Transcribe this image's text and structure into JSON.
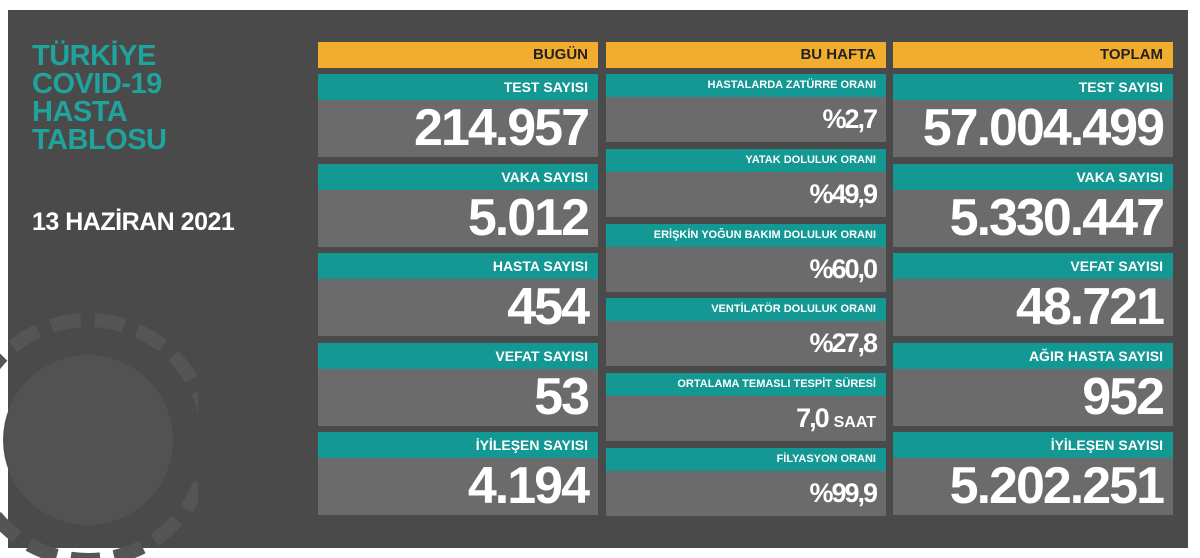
{
  "title_lines": [
    "TÜRKİYE",
    "COVID-19",
    "HASTA",
    "TABLOSU"
  ],
  "date": "13 HAZİRAN 2021",
  "columns": [
    {
      "header": "BUGÜN",
      "items": [
        {
          "label": "TEST SAYISI",
          "value": "214.957"
        },
        {
          "label": "VAKA SAYISI",
          "value": "5.012"
        },
        {
          "label": "HASTA SAYISI",
          "value": "454"
        },
        {
          "label": "VEFAT SAYISI",
          "value": "53"
        },
        {
          "label": "İYİLEŞEN SAYISI",
          "value": "4.194"
        }
      ]
    },
    {
      "header": "BU HAFTA",
      "items": [
        {
          "label": "HASTALARDA ZATÜRRE ORANI",
          "value": "%2,7"
        },
        {
          "label": "YATAK DOLULUK ORANI",
          "value": "%49,9"
        },
        {
          "label": "ERİŞKİN YOĞUN BAKIM DOLULUK ORANI",
          "value": "%60,0"
        },
        {
          "label": "VENTİLATÖR DOLULUK ORANI",
          "value": "%27,8"
        },
        {
          "label": "ORTALAMA TEMASLI TESPİT SÜRESİ",
          "value": "7,0",
          "unit": "SAAT"
        },
        {
          "label": "FİLYASYON ORANI",
          "value": "%99,9"
        }
      ]
    },
    {
      "header": "TOPLAM",
      "items": [
        {
          "label": "TEST SAYISI",
          "value": "57.004.499"
        },
        {
          "label": "VAKA SAYISI",
          "value": "5.330.447"
        },
        {
          "label": "VEFAT SAYISI",
          "value": "48.721"
        },
        {
          "label": "AĞIR HASTA SAYISI",
          "value": "952"
        },
        {
          "label": "İYİLEŞEN SAYISI",
          "value": "5.202.251"
        }
      ]
    }
  ]
}
